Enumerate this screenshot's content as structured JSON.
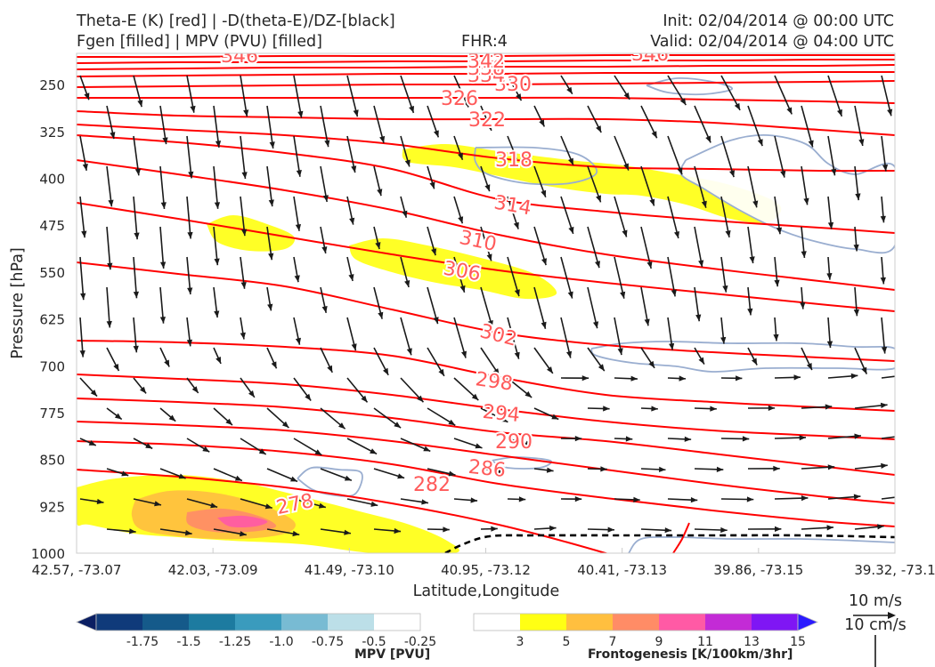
{
  "header": {
    "title_line1": "Theta-E (K) [red] | -D(theta-E)/DZ-[black]",
    "title_line2": "Fgen [filled] | MPV (PVU) [filled]",
    "fhr": "FHR:4",
    "init": "Init: 02/04/2014 @ 00:00 UTC",
    "valid": "Valid: 02/04/2014 @ 04:00 UTC"
  },
  "chart_data": {
    "type": "cross-section",
    "title": "Theta-E (K) [red] | -D(theta-E)/DZ-[black]",
    "xlabel": "Latitude,Longitude",
    "ylabel": "Pressure [hPa]",
    "x_ticks": [
      "42.57, -73.07",
      "42.03, -73.09",
      "41.49, -73.10",
      "40.95, -73.12",
      "40.41, -73.13",
      "39.86, -73.15",
      "39.32, -73.1"
    ],
    "y_ticks": [
      250,
      325,
      400,
      475,
      550,
      625,
      700,
      775,
      850,
      925,
      1000
    ],
    "ylim": [
      1000,
      200
    ],
    "y_inverted": true,
    "theta_e_contours": [
      278,
      282,
      286,
      290,
      294,
      298,
      302,
      306,
      310,
      314,
      318,
      322,
      326,
      330,
      334,
      338,
      342,
      346
    ],
    "theta_e_color": "#ff0000",
    "contour_label_color": "#ff5a5a",
    "mpv_outline_color": "#9aaed0",
    "dashed_contour_color": "#000000",
    "wind_reference": [
      "10 m/s",
      "10 cm/s"
    ],
    "colorbar_mpv": {
      "label": "MPV [PVU]",
      "ticks": [
        "-1.75",
        "-1.5",
        "-1.25",
        "-1.0",
        "-0.75",
        "-0.5",
        "-0.25"
      ],
      "colors": [
        "#0b1f63",
        "#0f3a7a",
        "#155a8a",
        "#1d7ba0",
        "#3a9bbd",
        "#78bbd3",
        "#bcdfe8",
        "#ffffff"
      ]
    },
    "colorbar_fgen": {
      "label": "Frontogenesis [K/100km/3hr]",
      "ticks": [
        "3",
        "5",
        "7",
        "9",
        "11",
        "13",
        "15"
      ],
      "colors": [
        "#ffffff",
        "#ffff14",
        "#ffbf3f",
        "#ff8c66",
        "#ff5aa5",
        "#c32bd6",
        "#7f16f4",
        "#2b1bff"
      ]
    }
  }
}
